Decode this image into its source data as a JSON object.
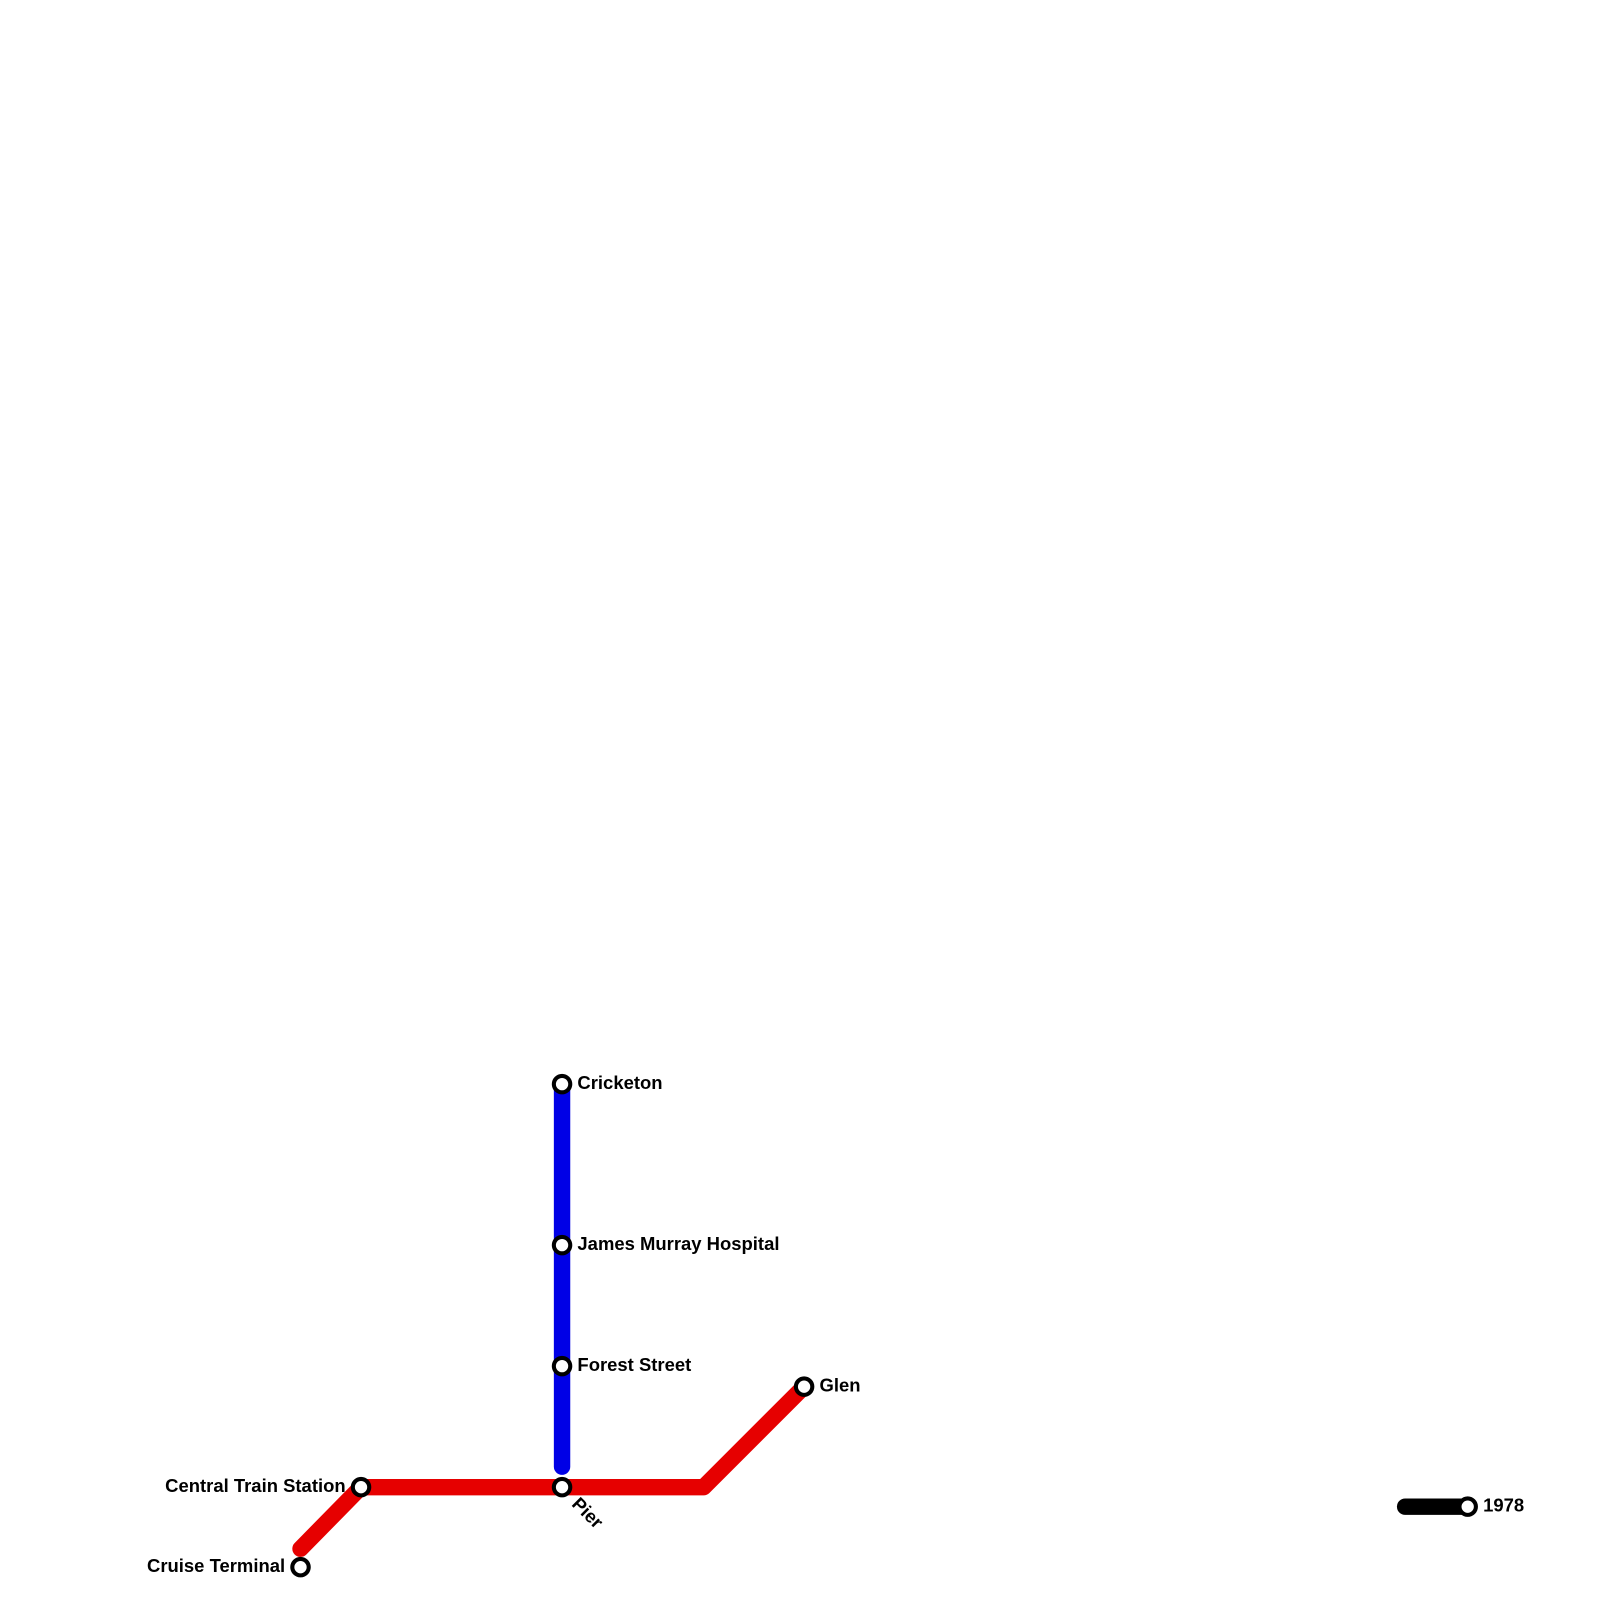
{
  "stations": [
    "Cricketon",
    "James Murray Hospital",
    "Forest Street",
    "Glen",
    "Central Train Station",
    "Pier",
    "Cruise Terminal",
    "1978"
  ]
}
